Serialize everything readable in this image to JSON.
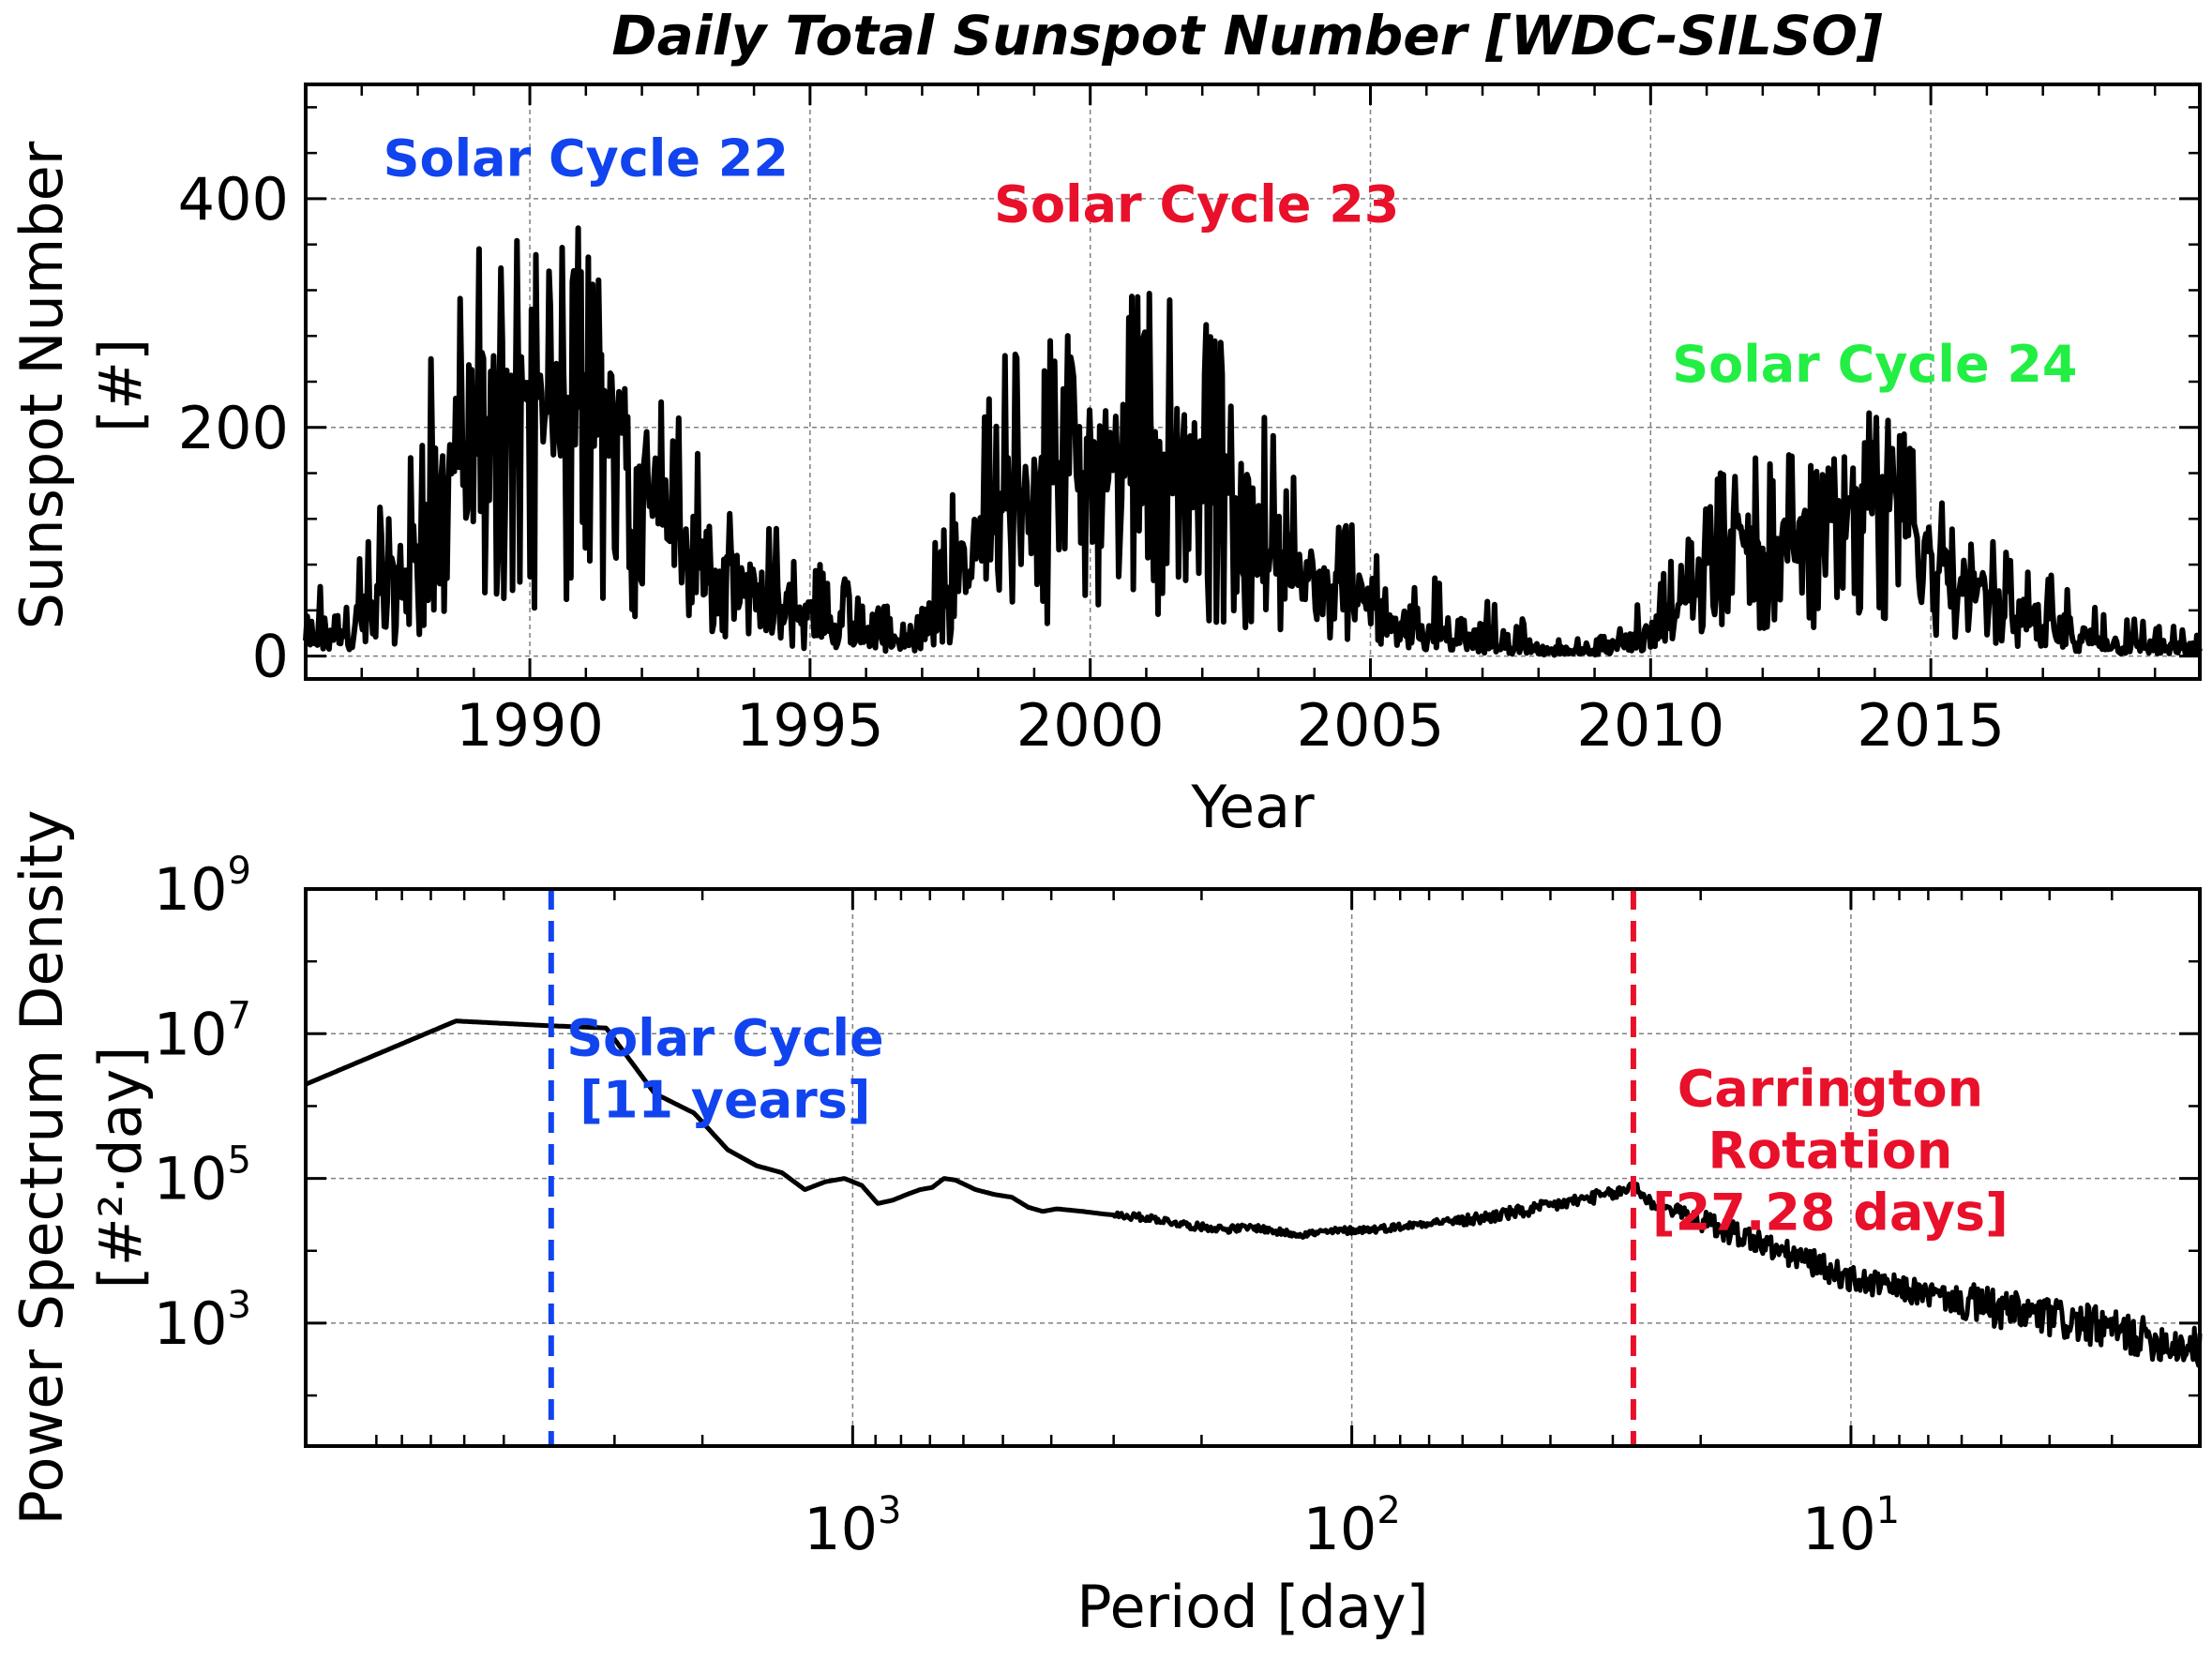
{
  "figure": {
    "title": "Daily Total Sunspot Number [WDC-SILSO]"
  },
  "colors": {
    "cycle22": "#1144ee",
    "cycle23": "#e8102a",
    "cycle24": "#22ee44",
    "solar_cycle_line": "#1144ee",
    "carrington_line": "#e8102a",
    "series": "#000000",
    "grid": "#808080"
  },
  "chart_data": [
    {
      "type": "line",
      "title": "Daily Total Sunspot Number [WDC-SILSO]",
      "xlabel": "Year",
      "ylabel": [
        "Sunspot Number",
        "[#]"
      ],
      "xlim": [
        1986.0,
        2019.8
      ],
      "ylim": [
        -20,
        500
      ],
      "xticks": [
        1990,
        1995,
        2000,
        2005,
        2010,
        2015
      ],
      "xtick_labels": [
        "1990",
        "1995",
        "2000",
        "2005",
        "2010",
        "2015"
      ],
      "yticks": [
        0,
        200,
        400
      ],
      "ytick_labels": [
        "0",
        "200",
        "400"
      ],
      "grid": true,
      "annotations": [
        {
          "text": "Solar Cycle 22",
          "x": 1991.0,
          "y": 420,
          "color_key": "cycle22"
        },
        {
          "text": "Solar Cycle 23",
          "x": 2001.9,
          "y": 380,
          "color_key": "cycle23"
        },
        {
          "text": "Solar Cycle 24",
          "x": 2014.0,
          "y": 240,
          "color_key": "cycle24"
        }
      ],
      "series": [
        {
          "daily_envelope": {
            "x": [
              1986.0,
              1986.5,
              1987.0,
              1987.5,
              1988.0,
              1988.5,
              1989.0,
              1989.5,
              1990.0,
              1990.5,
              1991.0,
              1991.5,
              1992.0,
              1992.5,
              1993.0,
              1993.5,
              1994.0,
              1994.5,
              1995.0,
              1995.5,
              1996.0,
              1996.5,
              1997.0,
              1997.5,
              1998.0,
              1998.5,
              1999.0,
              1999.5,
              2000.0,
              2000.5,
              2001.0,
              2001.5,
              2002.0,
              2002.5,
              2003.0,
              2003.5,
              2004.0,
              2004.5,
              2005.0,
              2005.5,
              2006.0,
              2006.5,
              2007.0,
              2007.5,
              2008.0,
              2008.5,
              2009.0,
              2009.5,
              2010.0,
              2010.5,
              2011.0,
              2011.5,
              2012.0,
              2012.5,
              2013.0,
              2013.5,
              2014.0,
              2014.5,
              2015.0,
              2015.5,
              2016.0,
              2016.5,
              2017.0,
              2017.5,
              2018.0,
              2018.5,
              2019.0,
              2019.5,
              2019.8
            ],
            "y_mean": [
              15,
              18,
              25,
              45,
              90,
              150,
              200,
              230,
              210,
              200,
              215,
              200,
              160,
              120,
              90,
              65,
              50,
              40,
              30,
              22,
              15,
              12,
              25,
              50,
              90,
              120,
              135,
              150,
              175,
              165,
              160,
              170,
              150,
              135,
              100,
              80,
              60,
              45,
              45,
              30,
              25,
              20,
              14,
              10,
              5,
              4,
              4,
              8,
              18,
              40,
              70,
              95,
              100,
              95,
              105,
              110,
              135,
              120,
              90,
              65,
              50,
              35,
              25,
              15,
              10,
              8,
              6,
              5,
              5
            ],
            "y_max": [
              70,
              75,
              100,
              150,
              210,
              330,
              380,
              380,
              350,
              360,
              410,
              350,
              300,
              230,
              190,
              150,
              135,
              120,
              90,
              75,
              50,
              45,
              75,
              140,
              200,
              290,
              290,
              280,
              300,
              350,
              350,
              310,
              310,
              260,
              250,
              175,
              160,
              135,
              125,
              90,
              75,
              60,
              55,
              40,
              25,
              15,
              15,
              35,
              60,
              95,
              140,
              190,
              185,
              180,
              175,
              190,
              220,
              200,
              160,
              130,
              110,
              85,
              80,
              70,
              40,
              35,
              30,
              25,
              25
            ]
          }
        }
      ]
    },
    {
      "type": "line",
      "xlabel": "Period [day]",
      "ylabel": [
        "Power Spectrum Density",
        "[#²·day]"
      ],
      "x_scale": "log",
      "x_inverted": true,
      "y_scale": "log",
      "xlim": [
        12470,
        2
      ],
      "ylim": [
        20,
        1000000000
      ],
      "xticks": [
        1000,
        100,
        10
      ],
      "xtick_labels": [
        "10",
        "10",
        "10"
      ],
      "xtick_exponents": [
        "3",
        "2",
        "1"
      ],
      "yticks": [
        1000,
        100000,
        10000000,
        1000000000
      ],
      "ytick_labels": [
        "10",
        "10",
        "10",
        "10"
      ],
      "ytick_exponents": [
        "3",
        "5",
        "7",
        "9"
      ],
      "grid": true,
      "vlines": [
        {
          "x": 4018,
          "style": "dashed",
          "color_key": "solar_cycle_line"
        },
        {
          "x": 27.28,
          "style": "dashed",
          "color_key": "carrington_line"
        }
      ],
      "annotations": [
        {
          "lines": [
            "Solar Cycle",
            "[11 years]"
          ],
          "x": 1800,
          "y": 5000000,
          "color_key": "solar_cycle_line"
        },
        {
          "lines": [
            "Carrington",
            "Rotation",
            "[27.28 days]"
          ],
          "x": 11,
          "y": 1000000,
          "color_key": "carrington_line"
        }
      ],
      "series": [
        {
          "x": [
            12470,
            6235,
            4157,
            3118,
            2494,
            2078,
            1781,
            1559,
            1386,
            1247,
            1134,
            1039,
            959,
            891,
            831,
            779,
            733,
            693,
            656,
            623,
            567,
            520,
            480,
            445,
            416,
            390,
            346,
            312,
            277,
            250,
            208,
            178,
            156,
            139,
            125,
            104,
            89,
            78,
            69,
            62,
            55,
            50,
            45,
            40,
            36,
            33,
            30,
            28,
            27.3,
            26,
            25,
            24,
            22,
            20,
            18,
            16,
            14,
            12,
            10,
            8,
            7,
            6,
            5,
            4,
            3.5,
            3,
            2.5,
            2.2,
            2
          ],
          "y": [
            2000000,
            15000000,
            13000000,
            12000000,
            1500000,
            800000,
            250000,
            150000,
            120000,
            70000,
            90000,
            100000,
            80000,
            45000,
            50000,
            60000,
            70000,
            75000,
            100000,
            95000,
            70000,
            60000,
            55000,
            40000,
            35000,
            38000,
            35000,
            32000,
            30000,
            28000,
            22000,
            20000,
            21000,
            18000,
            17000,
            19000,
            20000,
            22000,
            25000,
            26000,
            28000,
            32000,
            35000,
            42000,
            48000,
            55000,
            60000,
            70000,
            90000,
            55000,
            45000,
            40000,
            35000,
            25000,
            20000,
            15000,
            10000,
            7000,
            4000,
            3000,
            2500,
            2000,
            1500,
            1200,
            1000,
            800,
            600,
            500,
            450
          ]
        }
      ]
    }
  ]
}
